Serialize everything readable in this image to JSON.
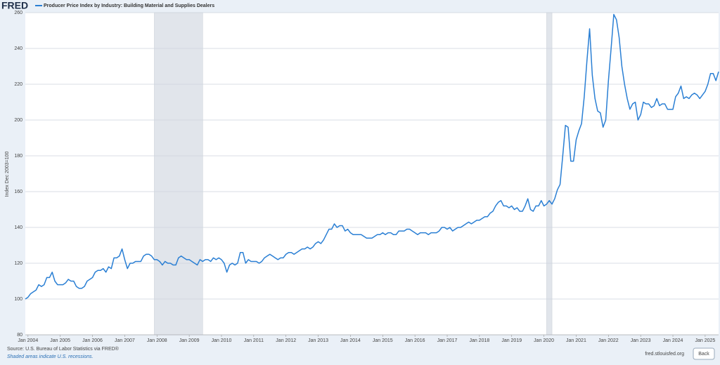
{
  "chart_data": {
    "type": "line",
    "brand": "FRED",
    "title": "Producer Price Index by Industry: Building Material and Supplies Dealers",
    "y_label": "Index Dec 2003=100",
    "source": "Source: U.S. Bureau of Labor Statistics via FRED®",
    "note": "Shaded areas indicate U.S. recessions.",
    "site": "fred.stlouisfed.org",
    "back_button": "Back",
    "ylim": [
      80,
      260
    ],
    "yticks": [
      80,
      100,
      120,
      140,
      160,
      180,
      200,
      220,
      240,
      260
    ],
    "grid": true,
    "recession_color": "#e1e5eb",
    "recessions": [
      [
        "2007-12",
        "2009-06"
      ],
      [
        "2020-02",
        "2020-04"
      ]
    ],
    "xticks": [
      {
        "value": "2004-01",
        "label": "Jan 2004"
      },
      {
        "value": "2005-01",
        "label": "Jan 2005"
      },
      {
        "value": "2006-01",
        "label": "Jan 2006"
      },
      {
        "value": "2007-01",
        "label": "Jan 2007"
      },
      {
        "value": "2008-01",
        "label": "Jan 2008"
      },
      {
        "value": "2009-01",
        "label": "Jan 2009"
      },
      {
        "value": "2010-01",
        "label": "Jan 2010"
      },
      {
        "value": "2011-01",
        "label": "Jan 2011"
      },
      {
        "value": "2012-01",
        "label": "Jan 2012"
      },
      {
        "value": "2013-01",
        "label": "Jan 2013"
      },
      {
        "value": "2014-01",
        "label": "Jan 2014"
      },
      {
        "value": "2015-01",
        "label": "Jan 2015"
      },
      {
        "value": "2016-01",
        "label": "Jan 2016"
      },
      {
        "value": "2017-01",
        "label": "Jan 2017"
      },
      {
        "value": "2018-01",
        "label": "Jan 2018"
      },
      {
        "value": "2019-01",
        "label": "Jan 2019"
      },
      {
        "value": "2020-01",
        "label": "Jan 2020"
      },
      {
        "value": "2021-01",
        "label": "Jan 2021"
      },
      {
        "value": "2022-01",
        "label": "Jan 2022"
      },
      {
        "value": "2023-01",
        "label": "Jan 2023"
      },
      {
        "value": "2024-01",
        "label": "Jan 2024"
      },
      {
        "value": "2025-01",
        "label": "Jan 2025"
      }
    ],
    "x": [
      "2003-12",
      "2004-01",
      "2004-02",
      "2004-03",
      "2004-04",
      "2004-05",
      "2004-06",
      "2004-07",
      "2004-08",
      "2004-09",
      "2004-10",
      "2004-11",
      "2004-12",
      "2005-01",
      "2005-02",
      "2005-03",
      "2005-04",
      "2005-05",
      "2005-06",
      "2005-07",
      "2005-08",
      "2005-09",
      "2005-10",
      "2005-11",
      "2005-12",
      "2006-01",
      "2006-02",
      "2006-03",
      "2006-04",
      "2006-05",
      "2006-06",
      "2006-07",
      "2006-08",
      "2006-09",
      "2006-10",
      "2006-11",
      "2006-12",
      "2007-01",
      "2007-02",
      "2007-03",
      "2007-04",
      "2007-05",
      "2007-06",
      "2007-07",
      "2007-08",
      "2007-09",
      "2007-10",
      "2007-11",
      "2007-12",
      "2008-01",
      "2008-02",
      "2008-03",
      "2008-04",
      "2008-05",
      "2008-06",
      "2008-07",
      "2008-08",
      "2008-09",
      "2008-10",
      "2008-11",
      "2008-12",
      "2009-01",
      "2009-02",
      "2009-03",
      "2009-04",
      "2009-05",
      "2009-06",
      "2009-07",
      "2009-08",
      "2009-09",
      "2009-10",
      "2009-11",
      "2009-12",
      "2010-01",
      "2010-02",
      "2010-03",
      "2010-04",
      "2010-05",
      "2010-06",
      "2010-07",
      "2010-08",
      "2010-09",
      "2010-10",
      "2010-11",
      "2010-12",
      "2011-01",
      "2011-02",
      "2011-03",
      "2011-04",
      "2011-05",
      "2011-06",
      "2011-07",
      "2011-08",
      "2011-09",
      "2011-10",
      "2011-11",
      "2011-12",
      "2012-01",
      "2012-02",
      "2012-03",
      "2012-04",
      "2012-05",
      "2012-06",
      "2012-07",
      "2012-08",
      "2012-09",
      "2012-10",
      "2012-11",
      "2012-12",
      "2013-01",
      "2013-02",
      "2013-03",
      "2013-04",
      "2013-05",
      "2013-06",
      "2013-07",
      "2013-08",
      "2013-09",
      "2013-10",
      "2013-11",
      "2013-12",
      "2014-01",
      "2014-02",
      "2014-03",
      "2014-04",
      "2014-05",
      "2014-06",
      "2014-07",
      "2014-08",
      "2014-09",
      "2014-10",
      "2014-11",
      "2014-12",
      "2015-01",
      "2015-02",
      "2015-03",
      "2015-04",
      "2015-05",
      "2015-06",
      "2015-07",
      "2015-08",
      "2015-09",
      "2015-10",
      "2015-11",
      "2015-12",
      "2016-01",
      "2016-02",
      "2016-03",
      "2016-04",
      "2016-05",
      "2016-06",
      "2016-07",
      "2016-08",
      "2016-09",
      "2016-10",
      "2016-11",
      "2016-12",
      "2017-01",
      "2017-02",
      "2017-03",
      "2017-04",
      "2017-05",
      "2017-06",
      "2017-07",
      "2017-08",
      "2017-09",
      "2017-10",
      "2017-11",
      "2017-12",
      "2018-01",
      "2018-02",
      "2018-03",
      "2018-04",
      "2018-05",
      "2018-06",
      "2018-07",
      "2018-08",
      "2018-09",
      "2018-10",
      "2018-11",
      "2018-12",
      "2019-01",
      "2019-02",
      "2019-03",
      "2019-04",
      "2019-05",
      "2019-06",
      "2019-07",
      "2019-08",
      "2019-09",
      "2019-10",
      "2019-11",
      "2019-12",
      "2020-01",
      "2020-02",
      "2020-03",
      "2020-04",
      "2020-05",
      "2020-06",
      "2020-07",
      "2020-08",
      "2020-09",
      "2020-10",
      "2020-11",
      "2020-12",
      "2021-01",
      "2021-02",
      "2021-03",
      "2021-04",
      "2021-05",
      "2021-06",
      "2021-07",
      "2021-08",
      "2021-09",
      "2021-10",
      "2021-11",
      "2021-12",
      "2022-01",
      "2022-02",
      "2022-03",
      "2022-04",
      "2022-05",
      "2022-06",
      "2022-07",
      "2022-08",
      "2022-09",
      "2022-10",
      "2022-11",
      "2022-12",
      "2023-01",
      "2023-02",
      "2023-03",
      "2023-04",
      "2023-05",
      "2023-06",
      "2023-07",
      "2023-08",
      "2023-09",
      "2023-10",
      "2023-11",
      "2023-12",
      "2024-01",
      "2024-02",
      "2024-03",
      "2024-04",
      "2024-05",
      "2024-06",
      "2024-07",
      "2024-08",
      "2024-09",
      "2024-10",
      "2024-11",
      "2024-12",
      "2025-01",
      "2025-02",
      "2025-03",
      "2025-04",
      "2025-05",
      "2025-06"
    ],
    "series": [
      {
        "name": "Producer Price Index by Industry: Building Material and Supplies Dealers",
        "color": "#2a7fd4",
        "values": [
          100,
          101,
          103,
          104,
          105,
          108,
          107,
          108,
          112,
          112,
          115,
          110,
          108,
          108,
          108,
          109,
          111,
          110,
          110,
          107,
          106,
          106,
          107,
          110,
          111,
          112,
          115,
          116,
          116,
          117,
          115,
          118,
          117,
          123,
          123,
          124,
          128,
          122,
          117,
          120,
          120,
          121,
          121,
          121,
          124,
          125,
          125,
          124,
          122,
          122,
          121,
          119,
          121,
          120,
          120,
          119,
          119,
          123,
          124,
          123,
          122,
          122,
          121,
          120,
          119,
          122,
          121,
          122,
          122,
          121,
          123,
          122,
          123,
          122,
          120,
          115,
          119,
          120,
          119,
          120,
          126,
          126,
          120,
          122,
          121,
          121,
          121,
          120,
          121,
          123,
          124,
          125,
          124,
          123,
          122,
          123,
          123,
          125,
          126,
          126,
          125,
          126,
          127,
          128,
          128,
          129,
          128,
          129,
          131,
          132,
          131,
          133,
          136,
          139,
          139,
          142,
          140,
          141,
          141,
          138,
          139,
          137,
          136,
          136,
          136,
          136,
          135,
          134,
          134,
          134,
          135,
          136,
          136,
          137,
          136,
          137,
          137,
          136,
          136,
          138,
          138,
          138,
          139,
          139,
          138,
          137,
          136,
          137,
          137,
          137,
          136,
          137,
          137,
          137,
          138,
          140,
          140,
          139,
          140,
          138,
          139,
          140,
          140,
          141,
          142,
          143,
          142,
          143,
          144,
          144,
          145,
          146,
          146,
          148,
          149,
          152,
          154,
          155,
          152,
          152,
          151,
          152,
          150,
          151,
          149,
          149,
          152,
          156,
          150,
          149,
          152,
          152,
          155,
          152,
          153,
          155,
          153,
          156,
          161,
          164,
          180,
          197,
          196,
          177,
          177,
          189,
          194,
          198,
          213,
          233,
          251,
          225,
          212,
          205,
          204,
          196,
          200,
          222,
          240,
          259,
          256,
          246,
          230,
          220,
          212,
          206,
          209,
          210,
          200,
          203,
          210,
          209,
          209,
          207,
          208,
          212,
          208,
          209,
          209,
          206,
          206,
          206,
          213,
          215,
          219,
          212,
          213,
          212,
          214,
          215,
          214,
          212,
          214,
          216,
          220,
          226,
          226,
          222,
          227
        ]
      }
    ]
  }
}
